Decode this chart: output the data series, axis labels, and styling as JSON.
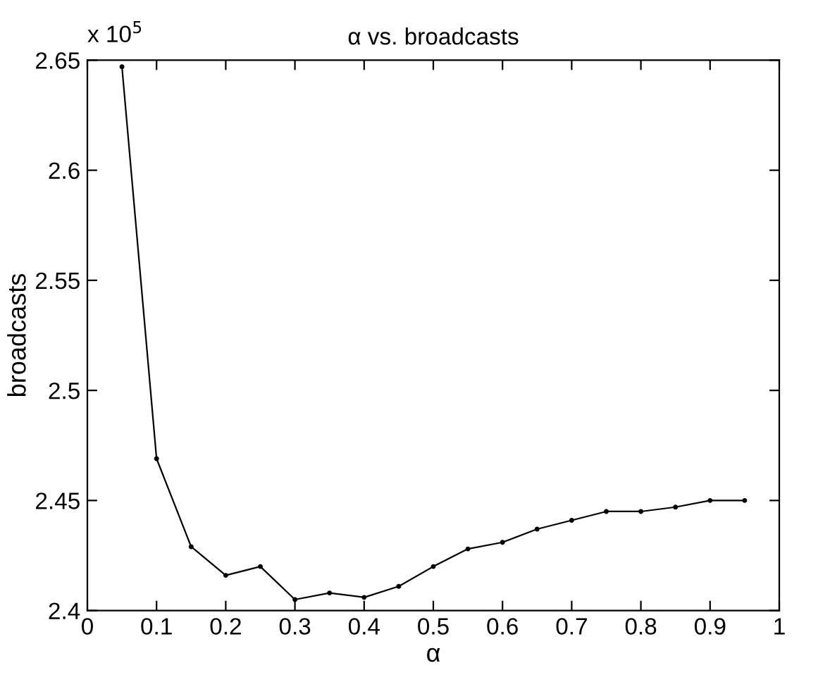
{
  "chart_data": {
    "type": "line",
    "title": "α vs. broadcasts",
    "xlabel": "α",
    "ylabel": "broadcasts",
    "annotations": [
      "x 10$^{5}$"
    ],
    "x": [
      0.05,
      0.1,
      0.15,
      0.2,
      0.25,
      0.3,
      0.35,
      0.4,
      0.45,
      0.5,
      0.55,
      0.6,
      0.65,
      0.7,
      0.75,
      0.8,
      0.85,
      0.9,
      0.95
    ],
    "series": [
      {
        "color": "#000000",
        "values": [
          2.647,
          2.469,
          2.429,
          2.416,
          2.42,
          2.405,
          2.408,
          2.406,
          2.411,
          2.42,
          2.428,
          2.431,
          2.437,
          2.441,
          2.445,
          2.445,
          2.447,
          2.45,
          2.45
        ]
      }
    ],
    "xlim": [
      0,
      1
    ],
    "xticks": [
      0,
      0.1,
      0.2,
      0.3,
      0.4,
      0.5,
      0.6,
      0.7,
      0.8,
      0.9,
      1
    ],
    "ylim": [
      2.4,
      2.65
    ],
    "yticks": [
      2.4,
      2.45,
      2.5,
      2.55,
      2.6,
      2.65
    ],
    "grid": false,
    "legend": false,
    "marker": "circle",
    "line_style": "solid"
  }
}
